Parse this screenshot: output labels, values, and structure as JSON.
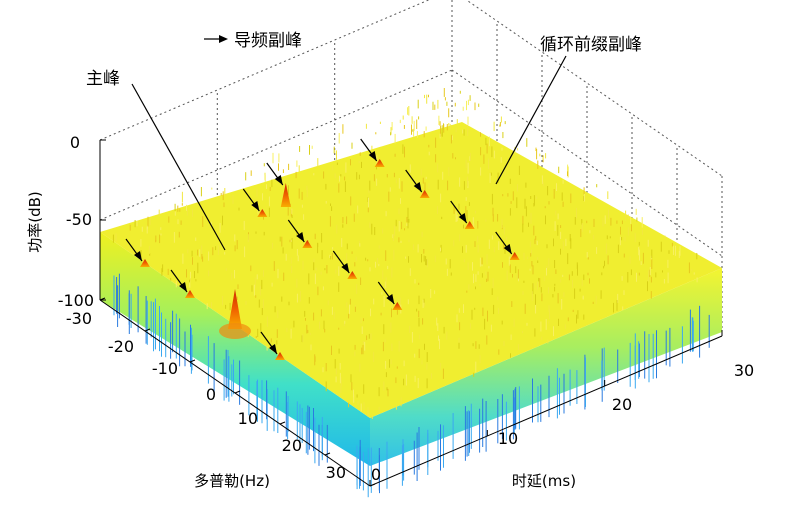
{
  "chart_data": {
    "type": "surface",
    "title": "",
    "xlabel": "时延(ms)",
    "ylabel": "多普勒(Hz)",
    "zlabel": "功率(dB)",
    "xlim": [
      0,
      30
    ],
    "ylim": [
      -30,
      30
    ],
    "zlim": [
      -100,
      0
    ],
    "x_ticks": [
      "0",
      "10",
      "20",
      "30"
    ],
    "y_ticks": [
      "-30",
      "-20",
      "-10",
      "0",
      "10",
      "20",
      "30"
    ],
    "z_ticks": [
      "0",
      "-50",
      "-100"
    ],
    "noise_floor_db": -60,
    "colormap": "jet",
    "peaks": [
      {
        "x": 0,
        "y": 0,
        "z": -35
      },
      {
        "x": 10,
        "y": 0,
        "z": -55
      },
      {
        "x": 20,
        "y": 0,
        "z": -55
      },
      {
        "x": 0,
        "y": -10,
        "z": -55
      },
      {
        "x": 0,
        "y": 10,
        "z": -55
      },
      {
        "x": 10,
        "y": -10,
        "z": -55
      },
      {
        "x": 10,
        "y": 10,
        "z": -55
      },
      {
        "x": 20,
        "y": -10,
        "z": -55
      },
      {
        "x": 20,
        "y": 10,
        "z": -55
      },
      {
        "x": 0,
        "y": -20,
        "z": -55
      },
      {
        "x": 10,
        "y": -20,
        "z": -55
      },
      {
        "x": 20,
        "y": -20,
        "z": -55
      },
      {
        "x": 12,
        "y": -20,
        "z": -45
      }
    ],
    "annotations": {
      "legend_pilot": "导频副峰",
      "main_peak": "主峰",
      "cp_peak": "循环前缀副峰"
    }
  }
}
